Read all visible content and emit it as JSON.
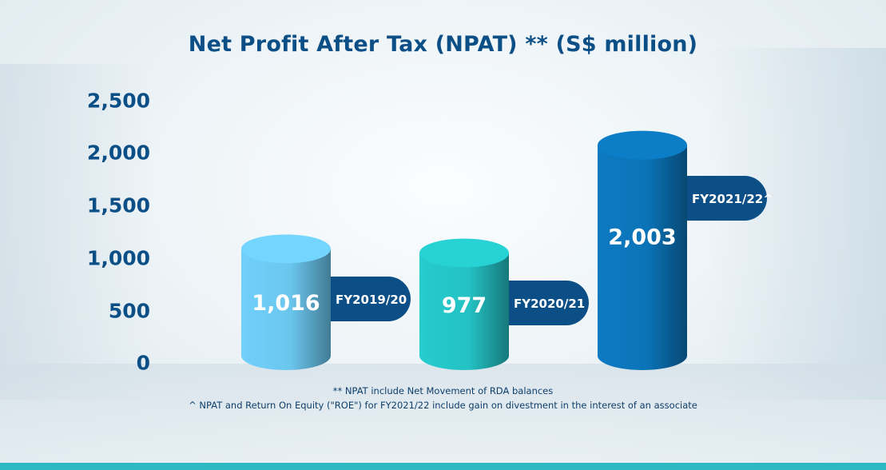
{
  "chart_data": {
    "type": "bar",
    "title": "Net Profit After Tax (NPAT) ** (S$ million)",
    "categories": [
      "FY2019/20",
      "FY2020/21",
      "FY2021/22^"
    ],
    "values": [
      1016,
      977,
      2003
    ],
    "value_labels": [
      "1,016",
      "977",
      "2,003"
    ],
    "yticks": [
      "0",
      "500",
      "1,000",
      "1,500",
      "2,000",
      "2,500"
    ],
    "ylim": [
      0,
      2500
    ],
    "grid": false,
    "colors": [
      "#6bc6ee",
      "#24c2c4",
      "#0b74b8"
    ],
    "label_tab_color": "#0b4f86"
  },
  "notes": [
    "** NPAT include Net Movement of RDA balances",
    "^ NPAT and Return On Equity (\"ROE\") for FY2021/22 include gain on divestment in the interest of an associate"
  ]
}
